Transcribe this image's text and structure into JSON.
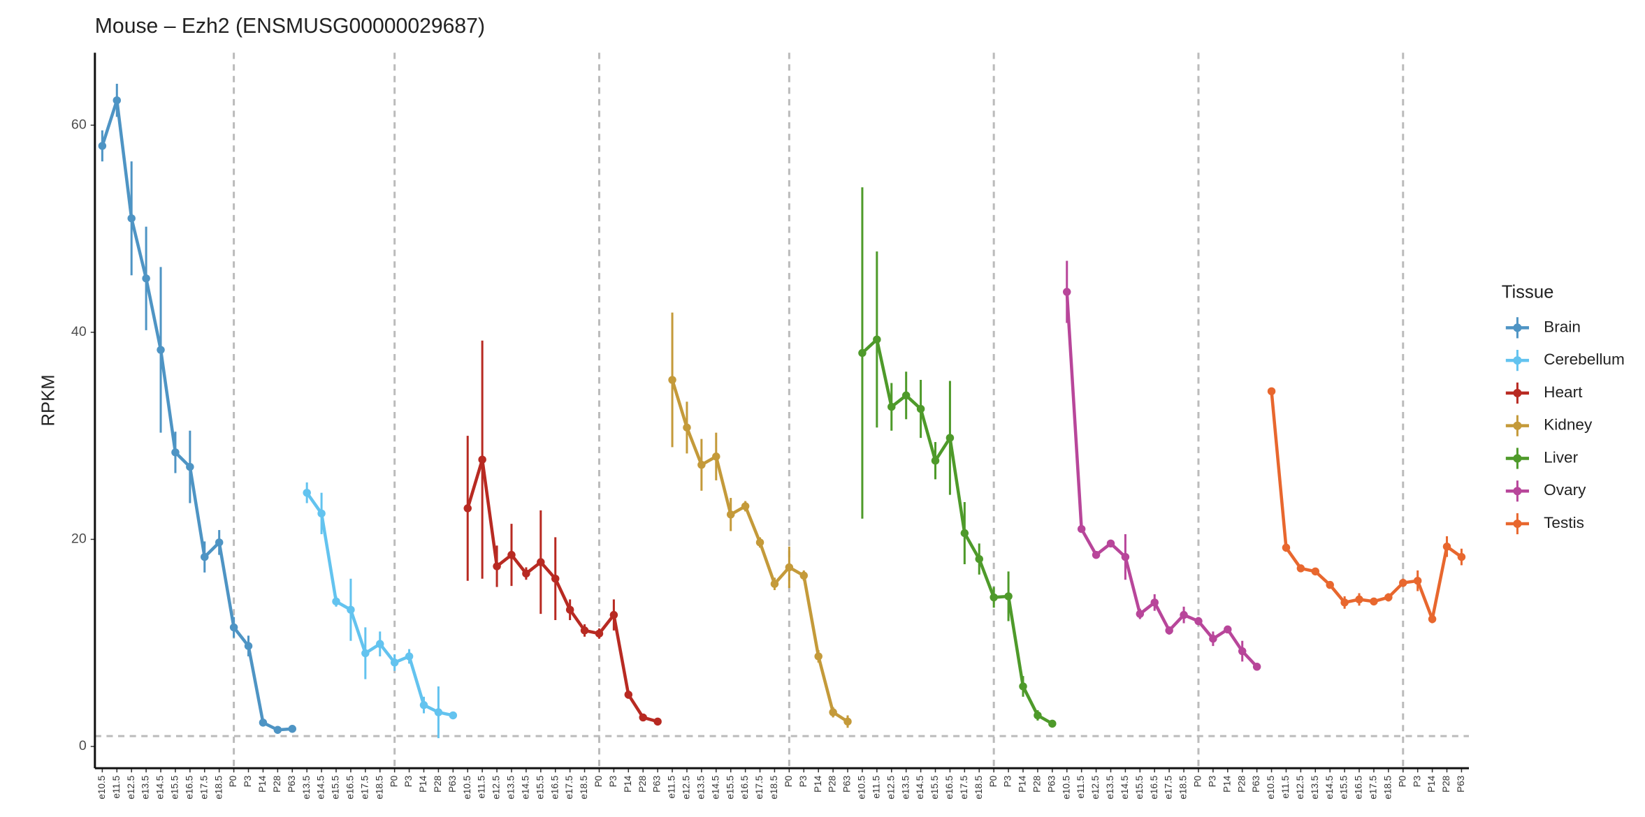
{
  "chart_data": {
    "type": "line",
    "title": "Mouse – Ezh2 (ENSMUSG00000029687)",
    "y_label": "RPKM",
    "legend_title": "Tissue",
    "legend": "right",
    "ylim": [
      -2.1,
      67
    ],
    "yticks": [
      0,
      20,
      40,
      60
    ],
    "hline": 1,
    "x_reference": "P0",
    "series": [
      {
        "name": "Brain",
        "color": "#4e94c4",
        "categories": [
          "e10.5",
          "e11.5",
          "e12.5",
          "e13.5",
          "e14.5",
          "e15.5",
          "e16.5",
          "e17.5",
          "e18.5",
          "P0",
          "P3",
          "P14",
          "P28",
          "P63"
        ],
        "values": [
          58.0,
          62.4,
          51.0,
          45.2,
          38.3,
          28.4,
          27.0,
          18.3,
          19.7,
          11.5,
          9.7,
          2.3,
          1.6,
          1.7
        ],
        "errors": [
          1.5,
          1.6,
          5.5,
          5.0,
          8.0,
          2.0,
          3.5,
          1.5,
          1.2,
          1.0,
          1.0,
          0.3,
          0.2,
          0.2
        ]
      },
      {
        "name": "Cerebellum",
        "color": "#63c3ef",
        "categories": [
          "e13.5",
          "e14.5",
          "e15.5",
          "e16.5",
          "e17.5",
          "e18.5",
          "P0",
          "P3",
          "P14",
          "P28",
          "P63"
        ],
        "values": [
          24.5,
          22.5,
          14.0,
          13.2,
          9.0,
          9.9,
          8.1,
          8.7,
          4.0,
          3.3,
          3.0
        ],
        "errors": [
          1.0,
          2.0,
          0.5,
          3.0,
          2.5,
          1.2,
          0.8,
          0.7,
          0.8,
          2.5,
          0.3
        ]
      },
      {
        "name": "Heart",
        "color": "#b82a22",
        "categories": [
          "e10.5",
          "e11.5",
          "e12.5",
          "e13.5",
          "e14.5",
          "e15.5",
          "e16.5",
          "e17.5",
          "e18.5",
          "P0",
          "P3",
          "P14",
          "P28",
          "P63"
        ],
        "values": [
          23.0,
          27.7,
          17.4,
          18.5,
          16.7,
          17.8,
          16.2,
          13.2,
          11.2,
          10.9,
          12.7,
          5.0,
          2.8,
          2.4
        ],
        "errors": [
          7.0,
          11.5,
          2.0,
          3.0,
          0.6,
          5.0,
          4.0,
          1.0,
          0.6,
          0.5,
          1.5,
          0.4,
          0.2,
          0.2
        ]
      },
      {
        "name": "Kidney",
        "color": "#c49a3a",
        "categories": [
          "e11.5",
          "e12.5",
          "e13.5",
          "e14.5",
          "e15.5",
          "e16.5",
          "e17.5",
          "e18.5",
          "P0",
          "P3",
          "P14",
          "P28",
          "P63"
        ],
        "values": [
          35.4,
          30.8,
          27.2,
          28.0,
          22.4,
          23.2,
          19.7,
          15.7,
          17.3,
          16.5,
          8.7,
          3.3,
          2.4
        ],
        "errors": [
          6.5,
          2.5,
          2.5,
          2.3,
          1.6,
          0.5,
          0.5,
          0.6,
          2.0,
          0.5,
          0.6,
          0.5,
          0.6
        ]
      },
      {
        "name": "Liver",
        "color": "#4e9a2a",
        "categories": [
          "e10.5",
          "e11.5",
          "e12.5",
          "e13.5",
          "e14.5",
          "e15.5",
          "e16.5",
          "e17.5",
          "e18.5",
          "P0",
          "P3",
          "P14",
          "P28",
          "P63"
        ],
        "values": [
          38.0,
          39.3,
          32.8,
          33.9,
          32.6,
          27.6,
          29.8,
          20.6,
          18.1,
          14.4,
          14.5,
          5.8,
          3.0,
          2.2
        ],
        "errors": [
          16.0,
          8.5,
          2.3,
          2.3,
          2.8,
          1.8,
          5.5,
          3.0,
          1.5,
          1.0,
          2.4,
          1.0,
          0.5,
          0.2
        ]
      },
      {
        "name": "Ovary",
        "color": "#b8469a",
        "categories": [
          "e10.5",
          "e11.5",
          "e12.5",
          "e13.5",
          "e14.5",
          "e15.5",
          "e16.5",
          "e17.5",
          "e18.5",
          "P0",
          "P3",
          "P14",
          "P28",
          "P63"
        ],
        "values": [
          43.9,
          21.0,
          18.5,
          19.6,
          18.3,
          12.8,
          13.9,
          11.2,
          12.7,
          12.1,
          10.4,
          11.3,
          9.2,
          7.7
        ],
        "errors": [
          3.0,
          0.3,
          0.3,
          0.3,
          2.2,
          0.5,
          0.8,
          0.4,
          0.8,
          0.4,
          0.7,
          0.3,
          1.0,
          0.2
        ]
      },
      {
        "name": "Testis",
        "color": "#e8672e",
        "categories": [
          "e10.5",
          "e11.5",
          "e12.5",
          "e13.5",
          "e14.5",
          "e15.5",
          "e16.5",
          "e17.5",
          "e18.5",
          "P0",
          "P3",
          "P14",
          "P28",
          "P63"
        ],
        "values": [
          34.3,
          19.2,
          17.2,
          16.9,
          15.6,
          13.9,
          14.2,
          14.0,
          14.4,
          15.8,
          16.0,
          12.3,
          19.3,
          18.3
        ],
        "errors": [
          0.3,
          0.4,
          0.3,
          0.3,
          0.3,
          0.6,
          0.6,
          0.3,
          0.4,
          0.4,
          1.0,
          0.4,
          1.0,
          0.8
        ]
      }
    ]
  }
}
